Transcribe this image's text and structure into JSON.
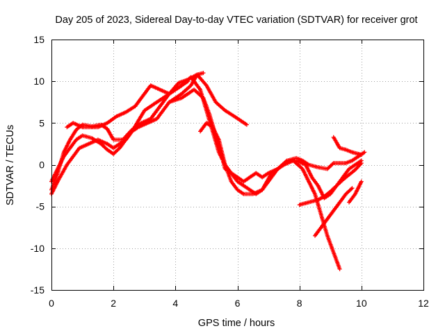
{
  "chart_data": {
    "type": "scatter",
    "title": "Day 205 of 2023, Sidereal Day-to-day VTEC variation (SDTVAR) for receiver grot",
    "xlabel": "GPS time / hours",
    "ylabel": "SDTVAR / TECUs",
    "xlim": [
      0,
      12
    ],
    "ylim": [
      -15,
      15
    ],
    "xticks": [
      0,
      2,
      4,
      6,
      8,
      10,
      12
    ],
    "yticks": [
      -15,
      -10,
      -5,
      0,
      5,
      10,
      15
    ],
    "grid": true,
    "marker": "+",
    "color": "#ff0000",
    "series": [
      {
        "x": [
          0.0,
          0.2,
          0.4,
          0.6,
          0.8,
          1.0,
          1.3,
          1.6,
          1.8,
          2.0,
          2.3,
          2.6,
          2.9,
          3.2,
          3.5,
          3.8,
          4.0,
          4.2,
          4.4
        ],
        "y": [
          -3.0,
          -1.0,
          1.5,
          3.0,
          4.2,
          4.8,
          4.6,
          4.8,
          4.3,
          3.0,
          3.0,
          4.2,
          5.0,
          5.5,
          7.0,
          8.5,
          9.0,
          9.5,
          10.0
        ]
      },
      {
        "x": [
          0.0,
          0.2,
          0.4,
          0.6,
          0.8,
          1.0,
          1.3,
          1.6,
          1.8,
          2.0,
          2.2,
          2.6,
          3.0,
          3.4,
          3.8,
          4.1,
          4.4,
          4.7,
          5.0,
          5.3,
          5.6,
          5.9,
          6.1,
          6.3
        ],
        "y": [
          -2.0,
          -0.5,
          1.0,
          2.0,
          3.0,
          3.5,
          3.2,
          2.5,
          1.8,
          1.3,
          2.0,
          4.0,
          6.5,
          7.5,
          8.5,
          9.8,
          10.2,
          10.8,
          9.5,
          7.5,
          6.5,
          5.8,
          5.3,
          4.8
        ]
      },
      {
        "x": [
          0.0,
          0.2,
          0.5,
          0.7,
          0.9,
          1.2,
          1.5,
          1.8,
          2.0,
          2.2,
          2.4,
          2.6,
          2.8,
          3.1,
          3.4,
          3.8,
          4.2,
          4.5,
          4.7,
          4.9
        ],
        "y": [
          -3.5,
          -2.0,
          0.0,
          1.0,
          2.0,
          2.5,
          3.0,
          2.5,
          2.0,
          2.5,
          3.0,
          4.0,
          4.5,
          5.0,
          5.5,
          7.5,
          8.5,
          9.5,
          10.8,
          11.0
        ]
      },
      {
        "x": [
          0.5,
          0.7,
          1.0,
          1.5,
          1.8,
          2.1,
          2.4,
          2.7,
          3.0,
          3.2,
          3.5,
          3.8,
          4.0,
          4.2,
          4.5,
          4.8,
          5.0,
          5.2,
          5.4,
          5.6,
          5.8,
          6.0,
          6.2,
          6.4,
          6.6,
          6.8,
          7.0,
          7.3,
          7.6,
          7.9,
          8.1,
          8.3,
          8.6,
          8.9,
          9.1,
          9.3,
          9.5,
          9.7,
          9.9,
          10.1
        ],
        "y": [
          4.5,
          5.0,
          4.5,
          4.5,
          5.0,
          5.8,
          6.3,
          7.0,
          8.5,
          9.5,
          9.0,
          8.5,
          9.0,
          9.5,
          10.5,
          9.0,
          6.5,
          4.0,
          1.5,
          0.0,
          -1.0,
          -2.0,
          -2.5,
          -3.0,
          -3.5,
          -3.0,
          -2.0,
          -0.5,
          0.5,
          0.8,
          0.5,
          0.0,
          -0.3,
          -0.5,
          0.2,
          0.2,
          0.2,
          0.5,
          1.0,
          1.5
        ]
      },
      {
        "x": [
          3.8,
          4.2,
          4.6,
          4.9,
          5.1,
          5.3,
          5.5,
          5.6,
          5.8,
          6.0,
          6.2,
          6.4,
          6.6,
          6.8,
          7.0,
          7.3,
          7.6,
          7.9,
          8.2,
          8.4,
          8.6,
          8.8,
          9.0,
          9.2,
          9.4,
          9.6,
          9.8,
          10.0
        ],
        "y": [
          7.5,
          8.0,
          9.0,
          8.0,
          6.0,
          3.5,
          1.0,
          -0.5,
          -1.0,
          -1.5,
          -2.0,
          -1.5,
          -1.0,
          -1.5,
          -1.0,
          -0.5,
          0.5,
          0.5,
          0.0,
          -1.5,
          -2.5,
          -4.0,
          -3.5,
          -2.5,
          -1.5,
          -0.5,
          0.0,
          0.5
        ]
      },
      {
        "x": [
          4.8,
          5.0,
          5.2,
          5.4,
          5.6,
          5.8,
          6.0,
          6.2,
          6.5,
          6.8,
          7.1,
          7.5,
          7.8,
          8.1,
          8.3,
          8.5,
          8.7,
          8.9,
          9.1,
          9.3
        ],
        "y": [
          4.0,
          5.0,
          4.5,
          3.0,
          0.0,
          -2.0,
          -3.0,
          -3.5,
          -3.5,
          -3.0,
          -1.0,
          0.0,
          0.5,
          -0.5,
          -2.0,
          -3.5,
          -6.0,
          -8.5,
          -10.5,
          -12.5
        ]
      },
      {
        "x": [
          8.0,
          8.2,
          8.4,
          8.6,
          8.8,
          9.0,
          9.2,
          9.4,
          9.6,
          9.8,
          10.0
        ],
        "y": [
          -4.8,
          -4.6,
          -4.4,
          -4.2,
          -3.8,
          -3.2,
          -2.5,
          -1.8,
          -1.2,
          -0.6,
          0.2
        ]
      },
      {
        "x": [
          8.5,
          8.7,
          8.9,
          9.1,
          9.3,
          9.5,
          9.7
        ],
        "y": [
          -8.5,
          -7.5,
          -6.5,
          -5.5,
          -4.5,
          -3.5,
          -2.8
        ]
      },
      {
        "x": [
          9.6,
          9.8,
          10.0
        ],
        "y": [
          -4.5,
          -3.5,
          -2.0
        ]
      },
      {
        "x": [
          9.1,
          9.3,
          9.5,
          9.7,
          9.9,
          10.0
        ],
        "y": [
          3.3,
          2.0,
          1.8,
          1.5,
          1.3,
          1.2
        ]
      }
    ]
  }
}
